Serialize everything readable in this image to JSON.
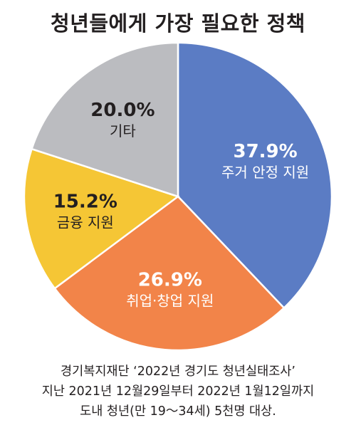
{
  "chart_data": {
    "type": "pie",
    "title": "청년들에게 가장 필요한 정책",
    "slices": [
      {
        "label": "주거 안정 지원",
        "value": 37.9,
        "display": "37.9%",
        "color": "#5b7cc4"
      },
      {
        "label": "취업·창업 지원",
        "value": 26.9,
        "display": "26.9%",
        "color": "#f28449"
      },
      {
        "label": "금융 지원",
        "value": 15.2,
        "display": "15.2%",
        "color": "#f5c635"
      },
      {
        "label": "기타",
        "value": 20.0,
        "display": "20.0%",
        "color": "#bbbcc0"
      }
    ],
    "start": "12 o'clock",
    "direction": "clockwise",
    "legend": "none"
  },
  "caption": {
    "lines": [
      "경기복지재단 ‘2022년 경기도 청년실태조사’",
      "지난 2021년 12월29일부터 2022년 1월12일까지",
      "도내 청년(만 19～34세) 5천명 대상."
    ]
  }
}
